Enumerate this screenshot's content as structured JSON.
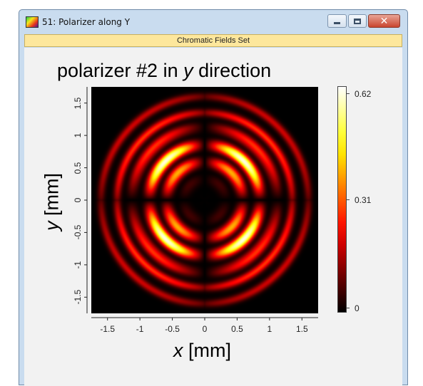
{
  "window": {
    "title": "51: Polarizer along Y",
    "buttons": {
      "minimize": "minimize",
      "maximize": "maximize",
      "close": "close"
    },
    "close_glyph": "✕",
    "toolbar_label": "Chromatic Fields Set"
  },
  "chart_data": {
    "type": "heatmap",
    "title_prefix": "polarizer #2 in ",
    "title_var": "y",
    "title_suffix": " direction",
    "xlabel_var": "x",
    "xlabel_unit": " [mm]",
    "ylabel_var": "y",
    "ylabel_unit": " [mm]",
    "xlim": [
      -1.75,
      1.75
    ],
    "ylim": [
      -1.75,
      1.75
    ],
    "x_ticks": [
      "-1.5",
      "-1",
      "-0.5",
      "0",
      "0.5",
      "1",
      "1.5"
    ],
    "x_tick_values": [
      -1.5,
      -1,
      -0.5,
      0,
      0.5,
      1,
      1.5
    ],
    "y_ticks": [
      "1.5",
      "1",
      "0.5",
      "0",
      "-0.5",
      "-1",
      "-1.5"
    ],
    "y_tick_values": [
      1.5,
      1,
      0.5,
      0,
      -0.5,
      -1,
      -1.5
    ],
    "colorbar": {
      "min": 0,
      "mid": 0.31,
      "max": 0.62,
      "labels": [
        "0.62",
        "0.31",
        "0"
      ],
      "colormap": "hot"
    },
    "peak_value": 0.62,
    "lobe_centers": [
      [
        -0.55,
        0.55
      ],
      [
        0.55,
        0.55
      ],
      [
        -0.55,
        -0.55
      ],
      [
        0.55,
        -0.55
      ]
    ],
    "ring_radii": [
      1.35,
      1.6
    ],
    "grid": false
  }
}
